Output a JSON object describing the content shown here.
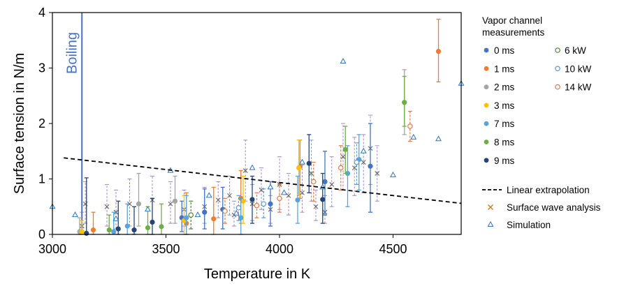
{
  "chart_data": {
    "type": "scatter",
    "xlabel": "Temperature in K",
    "ylabel": "Surface tension in N/m",
    "xlim": [
      3000,
      4800
    ],
    "ylim": [
      0,
      4
    ],
    "x_ticks": [
      3000,
      3500,
      4000,
      4500
    ],
    "y_ticks": [
      0,
      1,
      2,
      3,
      4
    ],
    "legend": {
      "title_line1": "Vapor channel",
      "title_line2": "measurements",
      "time_series": [
        {
          "label": "0 ms",
          "color": "#4472c4"
        },
        {
          "label": "1 ms",
          "color": "#ed7d31"
        },
        {
          "label": "2 ms",
          "color": "#a5a5a5"
        },
        {
          "label": "3 ms",
          "color": "#ffc000"
        },
        {
          "label": "7 ms",
          "color": "#5ba3d9"
        },
        {
          "label": "8 ms",
          "color": "#70ad47"
        },
        {
          "label": "9 ms",
          "color": "#264478"
        }
      ],
      "power_series": [
        {
          "label": "6 kW",
          "color": "#548235"
        },
        {
          "label": "10 kW",
          "color": "#5b9bd5"
        },
        {
          "label": "14 kW",
          "color": "#e07b48"
        }
      ],
      "linear_label": "Linear extrapolation",
      "surface_wave_label": "Surface wave analysis",
      "simulation_label": "Simulation"
    },
    "boiling": {
      "label": "Boiling",
      "x": 3130,
      "color": "#4472c4"
    },
    "linear_extrapolation": {
      "x": [
        3050,
        4800
      ],
      "y": [
        1.38,
        0.56
      ]
    },
    "simulation": {
      "color": "#2e75b6",
      "points": [
        [
          3000,
          0.5
        ],
        [
          3100,
          0.35
        ],
        [
          3280,
          0.28
        ],
        [
          3420,
          0.45
        ],
        [
          3520,
          1.15
        ],
        [
          3640,
          0.35
        ],
        [
          3690,
          0.7
        ],
        [
          3810,
          0.38
        ],
        [
          3880,
          1.2
        ],
        [
          3960,
          0.85
        ],
        [
          4020,
          0.75
        ],
        [
          4100,
          1.3
        ],
        [
          4190,
          0.85
        ],
        [
          4280,
          3.12
        ],
        [
          4370,
          1.5
        ],
        [
          4500,
          1.07
        ],
        [
          4590,
          1.75
        ],
        [
          4700,
          1.72
        ],
        [
          4800,
          2.72
        ]
      ]
    },
    "surface_wave": {
      "color": "#7b5ea7",
      "points": [
        [
          3130,
          0.15,
          0.05,
          0.4
        ],
        [
          3145,
          0.55,
          0.2,
          0.95
        ],
        [
          3240,
          0.5,
          0.15,
          0.9
        ],
        [
          3280,
          0.4,
          0.1,
          0.8
        ],
        [
          3340,
          0.55,
          0.15,
          1.0
        ],
        [
          3440,
          0.62,
          0.25,
          1.05
        ],
        [
          3520,
          0.55,
          0.2,
          0.95
        ],
        [
          3580,
          0.45,
          0.15,
          0.8
        ],
        [
          3670,
          0.5,
          0.2,
          0.85
        ],
        [
          3730,
          0.62,
          0.3,
          0.95
        ],
        [
          3780,
          0.7,
          0.35,
          1.05
        ],
        [
          3800,
          0.35,
          0.15,
          0.6
        ],
        [
          3850,
          1.15,
          0.6,
          1.7
        ],
        [
          3880,
          0.55,
          0.25,
          0.9
        ],
        [
          3920,
          0.8,
          0.45,
          1.2
        ],
        [
          3960,
          0.45,
          0.2,
          0.7
        ],
        [
          4000,
          0.9,
          0.45,
          1.4
        ],
        [
          4040,
          0.7,
          0.35,
          1.1
        ],
        [
          4100,
          0.75,
          0.4,
          1.25
        ],
        [
          4140,
          1.1,
          0.6,
          1.7
        ],
        [
          4160,
          0.5,
          0.25,
          0.8
        ],
        [
          4200,
          0.4,
          0.2,
          0.7
        ],
        [
          4230,
          0.9,
          0.5,
          1.4
        ],
        [
          4280,
          1.4,
          0.8,
          2.0
        ],
        [
          4330,
          1.2,
          0.7,
          1.75
        ],
        [
          4370,
          1.3,
          0.75,
          1.8
        ],
        [
          4400,
          1.55,
          0.9,
          2.15
        ],
        [
          4430,
          1.1,
          0.6,
          1.6
        ]
      ]
    },
    "time_points": [
      {
        "series": "0 ms",
        "x": 3570,
        "y": 0.3,
        "lo": 0.05,
        "hi": 0.6
      },
      {
        "series": "0 ms",
        "x": 3670,
        "y": 0.4,
        "lo": 0.1,
        "hi": 0.82
      },
      {
        "series": "0 ms",
        "x": 3750,
        "y": 0.45,
        "lo": 0.1,
        "hi": 0.85
      },
      {
        "series": "0 ms",
        "x": 3960,
        "y": 0.55,
        "lo": 0.15,
        "hi": 0.95
      },
      {
        "series": "0 ms",
        "x": 4200,
        "y": 0.95,
        "lo": 0.35,
        "hi": 1.5
      },
      {
        "series": "0 ms",
        "x": 4400,
        "y": 1.23,
        "lo": 0.4,
        "hi": 2.0
      },
      {
        "series": "1 ms",
        "x": 3180,
        "y": 0.08,
        "lo": 0.0,
        "hi": 0.4
      },
      {
        "series": "1 ms",
        "x": 3590,
        "y": 0.2,
        "lo": 0.0,
        "hi": 0.75
      },
      {
        "series": "1 ms",
        "x": 3710,
        "y": 0.28,
        "lo": 0.0,
        "hi": 0.85
      },
      {
        "series": "1 ms",
        "x": 3830,
        "y": 0.65,
        "lo": 0.2,
        "hi": 1.15
      },
      {
        "series": "1 ms",
        "x": 4090,
        "y": 1.22,
        "lo": 0.65,
        "hi": 1.7
      },
      {
        "series": "1 ms",
        "x": 4700,
        "y": 3.3,
        "lo": 2.75,
        "hi": 3.88
      },
      {
        "series": "2 ms",
        "x": 3120,
        "y": 0.05,
        "lo": 0.0,
        "hi": 0.3
      },
      {
        "series": "2 ms",
        "x": 3380,
        "y": 0.55,
        "lo": 0.15,
        "hi": 1.1
      },
      {
        "series": "2 ms",
        "x": 3540,
        "y": 0.6,
        "lo": 0.2,
        "hi": 1.05
      },
      {
        "series": "2 ms",
        "x": 4550,
        "y": 2.38,
        "lo": 1.8,
        "hi": 2.97
      },
      {
        "series": "3 ms",
        "x": 3130,
        "y": 0.05,
        "lo": 0.0,
        "hi": 0.25
      },
      {
        "series": "3 ms",
        "x": 3580,
        "y": 0.25,
        "lo": 0.0,
        "hi": 0.7
      },
      {
        "series": "3 ms",
        "x": 3840,
        "y": 0.6,
        "lo": 0.2,
        "hi": 1.05
      },
      {
        "series": "3 ms",
        "x": 4085,
        "y": 1.2,
        "lo": 0.7,
        "hi": 1.7
      },
      {
        "series": "7 ms",
        "x": 3270,
        "y": 0.05,
        "lo": 0.0,
        "hi": 0.4
      },
      {
        "series": "7 ms",
        "x": 3330,
        "y": 0.15,
        "lo": 0.0,
        "hi": 0.55
      },
      {
        "series": "7 ms",
        "x": 3590,
        "y": 0.3,
        "lo": 0.0,
        "hi": 0.7
      },
      {
        "series": "7 ms",
        "x": 3830,
        "y": 0.3,
        "lo": 0.0,
        "hi": 0.65
      },
      {
        "series": "7 ms",
        "x": 4080,
        "y": 0.62,
        "lo": 0.2,
        "hi": 1.05
      },
      {
        "series": "7 ms",
        "x": 4300,
        "y": 1.1,
        "lo": 0.5,
        "hi": 1.6
      },
      {
        "series": "7 ms",
        "x": 4350,
        "y": 1.35,
        "lo": 0.8,
        "hi": 1.8
      },
      {
        "series": "8 ms",
        "x": 3250,
        "y": 0.08,
        "lo": 0.0,
        "hi": 0.35
      },
      {
        "series": "8 ms",
        "x": 3420,
        "y": 0.12,
        "lo": 0.0,
        "hi": 0.5
      },
      {
        "series": "8 ms",
        "x": 3480,
        "y": 0.14,
        "lo": 0.0,
        "hi": 0.55
      },
      {
        "series": "8 ms",
        "x": 4290,
        "y": 1.53,
        "lo": 1.1,
        "hi": 1.95
      },
      {
        "series": "8 ms",
        "x": 4550,
        "y": 2.38,
        "lo": 1.95,
        "hi": 2.85
      },
      {
        "series": "9 ms",
        "x": 3150,
        "y": 0.02,
        "lo": 0.0,
        "hi": 1.02
      },
      {
        "series": "9 ms",
        "x": 3290,
        "y": 0.1,
        "lo": 0.0,
        "hi": 0.6
      },
      {
        "series": "9 ms",
        "x": 3360,
        "y": 0.08,
        "lo": 0.0,
        "hi": 0.5
      },
      {
        "series": "9 ms",
        "x": 3440,
        "y": 0.22,
        "lo": 0.0,
        "hi": 0.65
      },
      {
        "series": "9 ms",
        "x": 3880,
        "y": 0.63,
        "lo": 0.2,
        "hi": 1.05
      },
      {
        "series": "9 ms",
        "x": 4130,
        "y": 1.28,
        "lo": 0.75,
        "hi": 1.8
      },
      {
        "series": "9 ms",
        "x": 4190,
        "y": 0.63,
        "lo": 0.2,
        "hi": 1.1
      }
    ],
    "power_points": [
      {
        "series": "6 kW",
        "x": 3610,
        "y": 0.35,
        "lo": 0.1,
        "hi": 0.6
      },
      {
        "series": "10 kW",
        "x": 3820,
        "y": 0.48,
        "lo": 0.25,
        "hi": 0.7
      },
      {
        "series": "10 kW",
        "x": 3930,
        "y": 0.55,
        "lo": 0.3,
        "hi": 0.82
      },
      {
        "series": "10 kW",
        "x": 4340,
        "y": 1.3,
        "lo": 0.9,
        "hi": 1.65
      },
      {
        "series": "14 kW",
        "x": 3760,
        "y": 0.42,
        "lo": 0.2,
        "hi": 0.65
      },
      {
        "series": "14 kW",
        "x": 3900,
        "y": 0.52,
        "lo": 0.3,
        "hi": 0.75
      },
      {
        "series": "14 kW",
        "x": 4000,
        "y": 0.65,
        "lo": 0.4,
        "hi": 0.9
      },
      {
        "series": "14 kW",
        "x": 4150,
        "y": 0.95,
        "lo": 0.6,
        "hi": 1.3
      },
      {
        "series": "14 kW",
        "x": 4270,
        "y": 1.2,
        "lo": 0.8,
        "hi": 1.6
      },
      {
        "series": "14 kW",
        "x": 4575,
        "y": 1.95,
        "lo": 1.68,
        "hi": 2.22
      }
    ]
  }
}
